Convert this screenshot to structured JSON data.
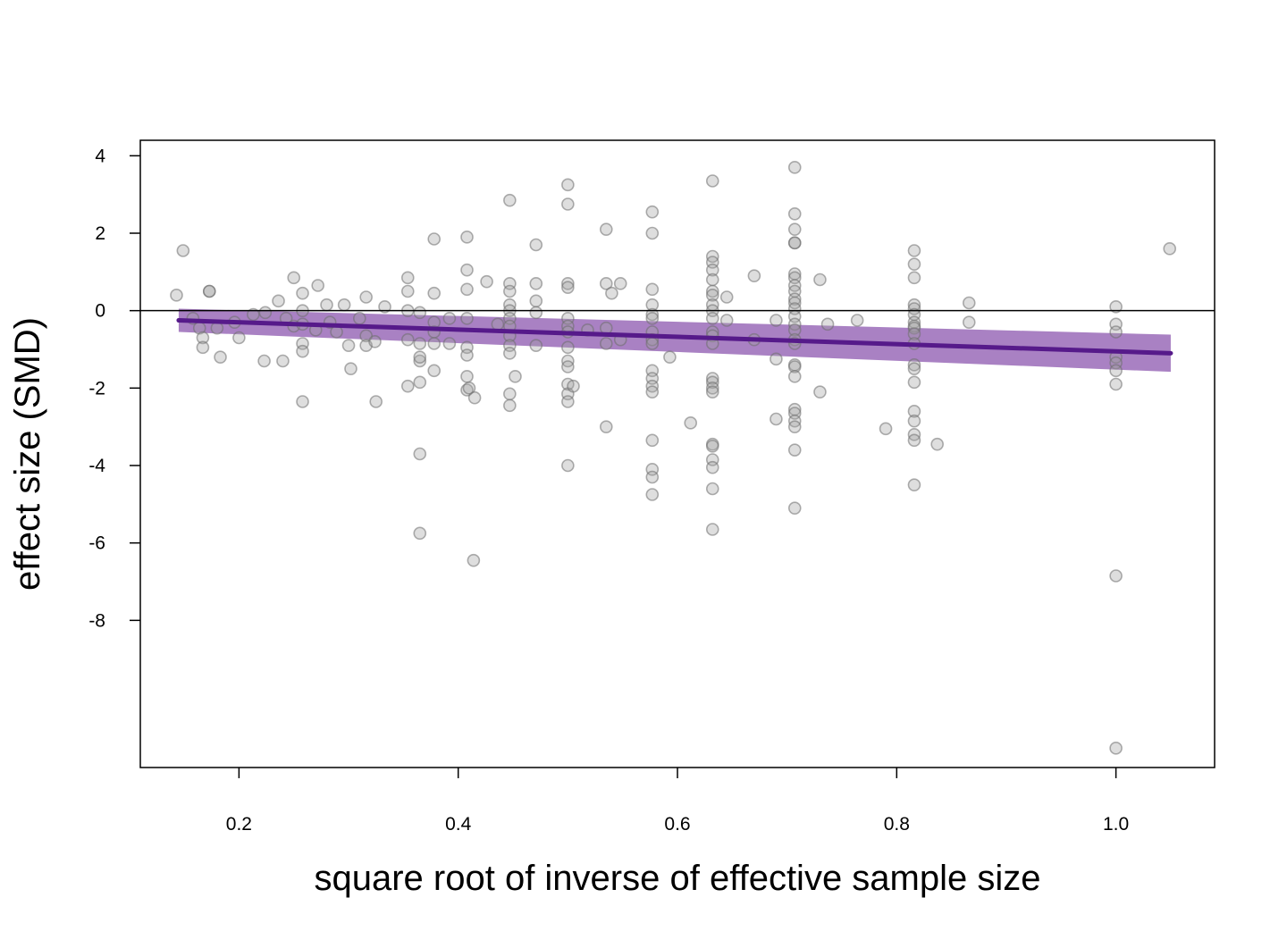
{
  "chart_data": {
    "type": "scatter",
    "title": "",
    "xlabel": "square root of inverse of effective sample size",
    "ylabel": "effect size (SMD)",
    "xlim": [
      0.11,
      1.09
    ],
    "ylim": [
      -11.8,
      4.4
    ],
    "x_ticks": [
      0.2,
      0.4,
      0.6,
      0.8,
      1.0
    ],
    "x_tick_labels": [
      "0.2",
      "0.4",
      "0.6",
      "0.8",
      "1.0"
    ],
    "y_ticks": [
      4,
      2,
      0,
      -2,
      -4,
      -6,
      -8
    ],
    "y_tick_labels": [
      "4",
      "2",
      "0",
      "-2",
      "-4",
      "-6",
      "-8"
    ],
    "reference_line": {
      "y": 0,
      "color": "#000000"
    },
    "grid": false,
    "colors": {
      "points": "#a0a0a0",
      "fit_line": "#561a8a",
      "ci_band": "#9a6bb8"
    },
    "fit": {
      "x": [
        0.145,
        1.05
      ],
      "y": [
        -0.25,
        -1.1
      ],
      "ci_lower": [
        -0.55,
        -1.58
      ],
      "ci_upper": [
        0.05,
        -0.62
      ]
    },
    "points": [
      [
        0.143,
        0.4
      ],
      [
        0.149,
        1.55
      ],
      [
        0.158,
        -0.2
      ],
      [
        0.164,
        -0.45
      ],
      [
        0.167,
        -0.7
      ],
      [
        0.167,
        -0.95
      ],
      [
        0.173,
        0.5
      ],
      [
        0.173,
        0.5
      ],
      [
        0.18,
        -0.45
      ],
      [
        0.183,
        -1.2
      ],
      [
        0.196,
        -0.3
      ],
      [
        0.2,
        -0.7
      ],
      [
        0.213,
        -0.1
      ],
      [
        0.223,
        -1.3
      ],
      [
        0.224,
        -0.05
      ],
      [
        0.236,
        0.25
      ],
      [
        0.24,
        -1.3
      ],
      [
        0.243,
        -0.2
      ],
      [
        0.25,
        0.85
      ],
      [
        0.25,
        -0.4
      ],
      [
        0.258,
        0.45
      ],
      [
        0.258,
        0.0
      ],
      [
        0.258,
        -0.35
      ],
      [
        0.258,
        -0.85
      ],
      [
        0.258,
        -1.05
      ],
      [
        0.258,
        -2.35
      ],
      [
        0.27,
        -0.5
      ],
      [
        0.272,
        0.65
      ],
      [
        0.28,
        0.15
      ],
      [
        0.283,
        -0.3
      ],
      [
        0.289,
        -0.55
      ],
      [
        0.296,
        0.15
      ],
      [
        0.3,
        -0.9
      ],
      [
        0.302,
        -1.5
      ],
      [
        0.31,
        -0.2
      ],
      [
        0.316,
        0.35
      ],
      [
        0.316,
        -0.65
      ],
      [
        0.316,
        -0.9
      ],
      [
        0.324,
        -0.8
      ],
      [
        0.325,
        -2.35
      ],
      [
        0.333,
        0.1
      ],
      [
        0.354,
        0.85
      ],
      [
        0.354,
        0.5
      ],
      [
        0.354,
        0.0
      ],
      [
        0.354,
        -0.75
      ],
      [
        0.354,
        -1.95
      ],
      [
        0.365,
        -0.05
      ],
      [
        0.365,
        -0.85
      ],
      [
        0.365,
        -1.3
      ],
      [
        0.365,
        -1.2
      ],
      [
        0.365,
        -1.85
      ],
      [
        0.365,
        -3.7
      ],
      [
        0.365,
        -5.75
      ],
      [
        0.378,
        1.85
      ],
      [
        0.378,
        0.45
      ],
      [
        0.378,
        -0.3
      ],
      [
        0.378,
        -0.55
      ],
      [
        0.378,
        -0.85
      ],
      [
        0.378,
        -1.55
      ],
      [
        0.392,
        -0.2
      ],
      [
        0.392,
        -0.85
      ],
      [
        0.408,
        1.9
      ],
      [
        0.408,
        1.05
      ],
      [
        0.408,
        0.55
      ],
      [
        0.408,
        -0.2
      ],
      [
        0.408,
        -0.95
      ],
      [
        0.408,
        -1.15
      ],
      [
        0.408,
        -1.7
      ],
      [
        0.408,
        -2.05
      ],
      [
        0.41,
        -2.0
      ],
      [
        0.414,
        -6.45
      ],
      [
        0.415,
        -2.25
      ],
      [
        0.426,
        0.75
      ],
      [
        0.436,
        -0.35
      ],
      [
        0.447,
        2.85
      ],
      [
        0.447,
        0.7
      ],
      [
        0.447,
        0.5
      ],
      [
        0.447,
        0.15
      ],
      [
        0.447,
        0.0
      ],
      [
        0.447,
        -0.2
      ],
      [
        0.447,
        -0.4
      ],
      [
        0.447,
        -0.65
      ],
      [
        0.447,
        -0.9
      ],
      [
        0.447,
        -1.1
      ],
      [
        0.447,
        -2.15
      ],
      [
        0.447,
        -2.45
      ],
      [
        0.452,
        -1.7
      ],
      [
        0.471,
        1.7
      ],
      [
        0.471,
        0.7
      ],
      [
        0.471,
        0.25
      ],
      [
        0.471,
        -0.05
      ],
      [
        0.471,
        -0.9
      ],
      [
        0.5,
        3.25
      ],
      [
        0.5,
        2.75
      ],
      [
        0.5,
        0.7
      ],
      [
        0.5,
        0.6
      ],
      [
        0.5,
        -0.2
      ],
      [
        0.5,
        -0.4
      ],
      [
        0.5,
        -0.55
      ],
      [
        0.5,
        -0.95
      ],
      [
        0.5,
        -1.3
      ],
      [
        0.5,
        -1.45
      ],
      [
        0.5,
        -1.9
      ],
      [
        0.5,
        -2.15
      ],
      [
        0.5,
        -2.35
      ],
      [
        0.5,
        -4.0
      ],
      [
        0.505,
        -1.95
      ],
      [
        0.518,
        -0.5
      ],
      [
        0.535,
        2.1
      ],
      [
        0.535,
        0.7
      ],
      [
        0.535,
        -0.45
      ],
      [
        0.535,
        -0.85
      ],
      [
        0.535,
        -3.0
      ],
      [
        0.54,
        0.45
      ],
      [
        0.548,
        0.7
      ],
      [
        0.548,
        -0.75
      ],
      [
        0.577,
        2.55
      ],
      [
        0.577,
        2.0
      ],
      [
        0.577,
        0.55
      ],
      [
        0.577,
        0.15
      ],
      [
        0.577,
        -0.1
      ],
      [
        0.577,
        -0.2
      ],
      [
        0.577,
        -0.55
      ],
      [
        0.577,
        -0.75
      ],
      [
        0.577,
        -0.85
      ],
      [
        0.577,
        -1.55
      ],
      [
        0.577,
        -1.75
      ],
      [
        0.577,
        -1.95
      ],
      [
        0.577,
        -2.1
      ],
      [
        0.577,
        -3.35
      ],
      [
        0.577,
        -4.1
      ],
      [
        0.577,
        -4.3
      ],
      [
        0.577,
        -4.75
      ],
      [
        0.593,
        -1.2
      ],
      [
        0.612,
        -2.9
      ],
      [
        0.632,
        3.35
      ],
      [
        0.632,
        1.4
      ],
      [
        0.632,
        1.25
      ],
      [
        0.632,
        1.05
      ],
      [
        0.632,
        0.8
      ],
      [
        0.632,
        0.5
      ],
      [
        0.632,
        0.4
      ],
      [
        0.632,
        0.15
      ],
      [
        0.632,
        0.0
      ],
      [
        0.632,
        -0.2
      ],
      [
        0.632,
        -0.55
      ],
      [
        0.632,
        -0.65
      ],
      [
        0.632,
        -0.85
      ],
      [
        0.632,
        -1.75
      ],
      [
        0.632,
        -1.85
      ],
      [
        0.632,
        -2.0
      ],
      [
        0.632,
        -2.1
      ],
      [
        0.632,
        -3.45
      ],
      [
        0.632,
        -3.5
      ],
      [
        0.632,
        -3.85
      ],
      [
        0.632,
        -4.05
      ],
      [
        0.632,
        -4.6
      ],
      [
        0.632,
        -5.65
      ],
      [
        0.645,
        0.35
      ],
      [
        0.645,
        -0.25
      ],
      [
        0.67,
        0.9
      ],
      [
        0.67,
        -0.75
      ],
      [
        0.69,
        -0.25
      ],
      [
        0.69,
        -1.25
      ],
      [
        0.69,
        -2.8
      ],
      [
        0.707,
        3.7
      ],
      [
        0.707,
        2.5
      ],
      [
        0.707,
        2.1
      ],
      [
        0.707,
        1.75
      ],
      [
        0.707,
        1.75
      ],
      [
        0.707,
        0.95
      ],
      [
        0.707,
        0.85
      ],
      [
        0.707,
        0.65
      ],
      [
        0.707,
        0.5
      ],
      [
        0.707,
        0.3
      ],
      [
        0.707,
        0.2
      ],
      [
        0.707,
        0.05
      ],
      [
        0.707,
        -0.15
      ],
      [
        0.707,
        -0.35
      ],
      [
        0.707,
        -0.5
      ],
      [
        0.707,
        -0.75
      ],
      [
        0.707,
        -0.85
      ],
      [
        0.707,
        -1.4
      ],
      [
        0.707,
        -1.45
      ],
      [
        0.707,
        -1.7
      ],
      [
        0.707,
        -2.55
      ],
      [
        0.707,
        -2.65
      ],
      [
        0.707,
        -2.85
      ],
      [
        0.707,
        -3.0
      ],
      [
        0.707,
        -3.6
      ],
      [
        0.707,
        -5.1
      ],
      [
        0.73,
        0.8
      ],
      [
        0.73,
        -2.1
      ],
      [
        0.737,
        -0.35
      ],
      [
        0.764,
        -0.25
      ],
      [
        0.79,
        -3.05
      ],
      [
        0.816,
        1.55
      ],
      [
        0.816,
        1.2
      ],
      [
        0.816,
        0.85
      ],
      [
        0.816,
        0.15
      ],
      [
        0.816,
        0.05
      ],
      [
        0.816,
        -0.1
      ],
      [
        0.816,
        -0.3
      ],
      [
        0.816,
        -0.4
      ],
      [
        0.816,
        -0.45
      ],
      [
        0.816,
        -0.6
      ],
      [
        0.816,
        -0.85
      ],
      [
        0.816,
        -1.4
      ],
      [
        0.816,
        -1.5
      ],
      [
        0.816,
        -1.85
      ],
      [
        0.816,
        -2.6
      ],
      [
        0.816,
        -2.85
      ],
      [
        0.816,
        -3.2
      ],
      [
        0.816,
        -3.35
      ],
      [
        0.816,
        -4.5
      ],
      [
        0.837,
        -3.45
      ],
      [
        0.866,
        0.2
      ],
      [
        0.866,
        -0.3
      ],
      [
        1.0,
        0.1
      ],
      [
        1.0,
        -0.35
      ],
      [
        1.0,
        -0.55
      ],
      [
        1.0,
        -1.2
      ],
      [
        1.0,
        -1.35
      ],
      [
        1.0,
        -1.55
      ],
      [
        1.0,
        -1.9
      ],
      [
        1.0,
        -6.85
      ],
      [
        1.0,
        -11.3
      ],
      [
        1.049,
        1.6
      ]
    ]
  }
}
